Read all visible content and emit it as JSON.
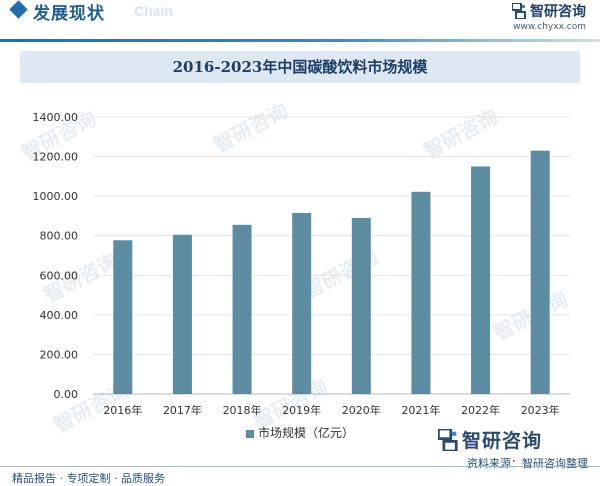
{
  "header": {
    "section_title": "发展现状",
    "ghost_text": "Chain",
    "brand_name": "智研咨询",
    "brand_url": "www.chyxx.com"
  },
  "watermark_text": "智研咨询",
  "chart_data": {
    "type": "bar",
    "title": "2016-2023年中国碳酸饮料市场规模",
    "categories": [
      "2016年",
      "2017年",
      "2018年",
      "2019年",
      "2020年",
      "2021年",
      "2022年",
      "2023年"
    ],
    "series": [
      {
        "name": "市场规模（亿元）",
        "values": [
          777,
          805,
          855,
          915,
          890,
          1022,
          1150,
          1230
        ]
      }
    ],
    "ylim": [
      0,
      1400
    ],
    "yticks": [
      "0.00",
      "200.00",
      "400.00",
      "600.00",
      "800.00",
      "1000.00",
      "1200.00",
      "1400.00"
    ],
    "grid": true,
    "legend": "bottom",
    "bar_color": "#5b8ca1"
  },
  "source": {
    "brand_name": "智研咨询",
    "text": "资料来源：智研咨询整理"
  },
  "footer": {
    "services": "精品报告 · 专项定制 · 品质服务"
  }
}
